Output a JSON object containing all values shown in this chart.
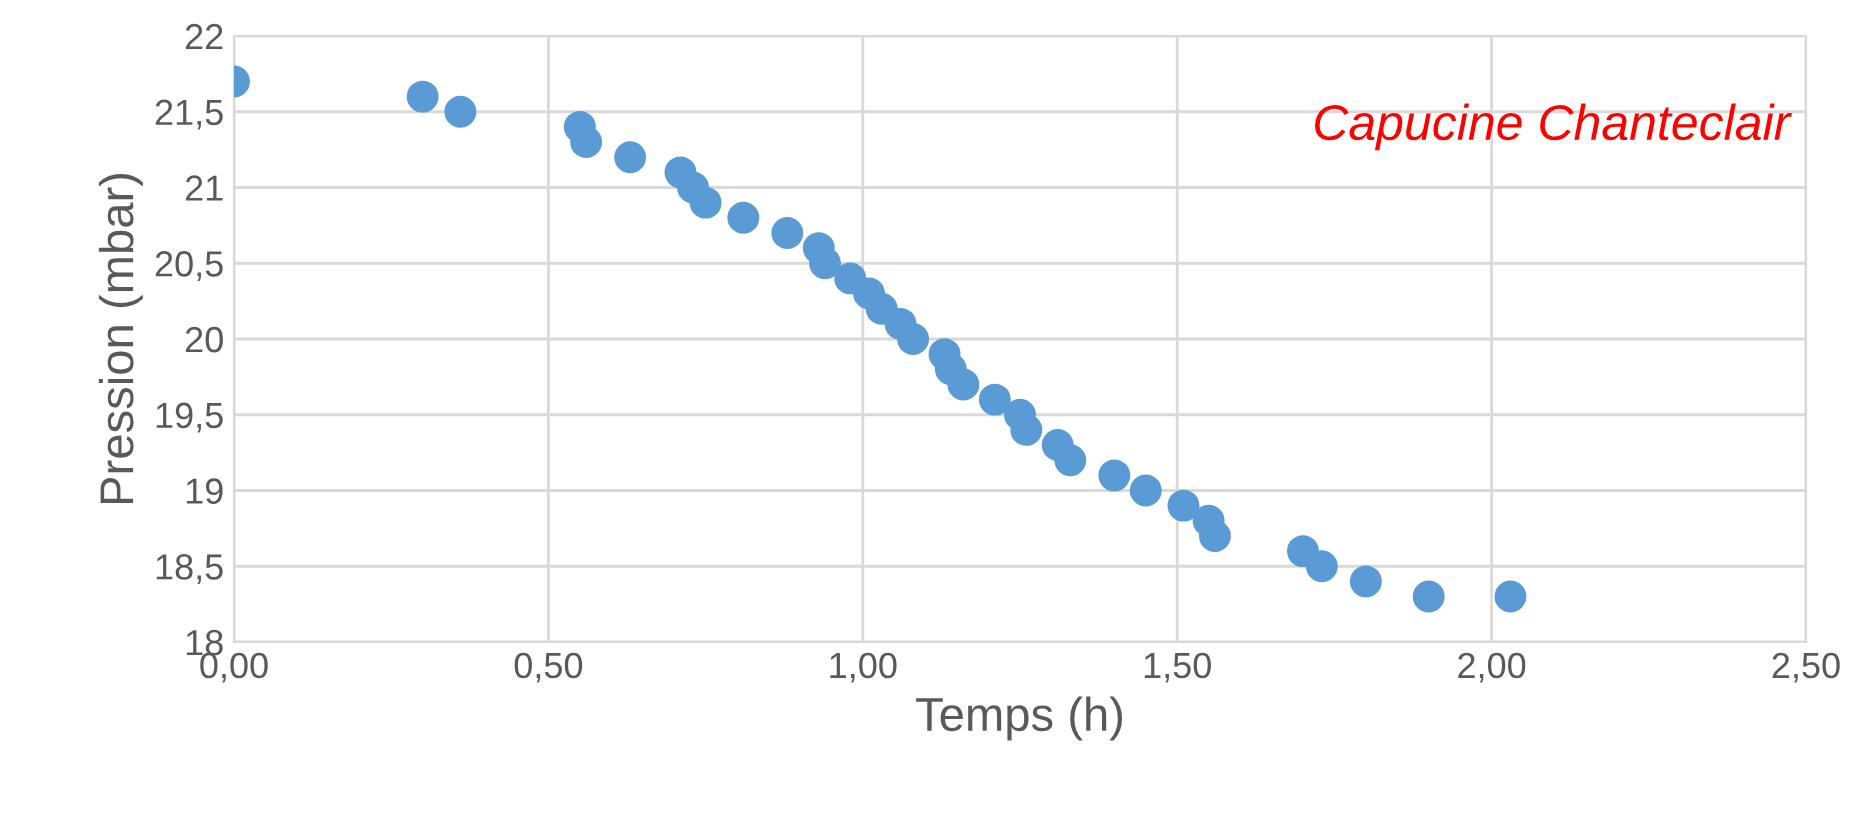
{
  "chart_data": {
    "type": "scatter",
    "xlabel": "Temps (h)",
    "ylabel": "Pression (mbar)",
    "annotations": [
      "Capucine Chanteclair"
    ],
    "x": [
      0.0,
      0.3,
      0.36,
      0.55,
      0.56,
      0.63,
      0.71,
      0.73,
      0.75,
      0.81,
      0.88,
      0.93,
      0.94,
      0.98,
      1.01,
      1.03,
      1.06,
      1.08,
      1.13,
      1.14,
      1.16,
      1.21,
      1.25,
      1.26,
      1.31,
      1.33,
      1.4,
      1.45,
      1.51,
      1.55,
      1.56,
      1.7,
      1.73,
      1.8,
      1.9,
      2.03
    ],
    "series": [
      {
        "color": "#5b9bd5",
        "values": [
          21.7,
          21.6,
          21.5,
          21.4,
          21.3,
          21.2,
          21.1,
          21.0,
          20.9,
          20.8,
          20.7,
          20.6,
          20.5,
          20.4,
          20.3,
          20.2,
          20.1,
          20.0,
          19.9,
          19.8,
          19.7,
          19.6,
          19.5,
          19.4,
          19.3,
          19.2,
          19.1,
          19.0,
          18.9,
          18.8,
          18.7,
          18.6,
          18.5,
          18.4,
          18.3,
          18.3
        ]
      }
    ],
    "xlim": [
      0,
      2.5
    ],
    "ylim": [
      18,
      22
    ],
    "xticks": [
      {
        "value": 0,
        "label": "0,00"
      },
      {
        "value": 0.5,
        "label": "0,50"
      },
      {
        "value": 1,
        "label": "1,00"
      },
      {
        "value": 1.5,
        "label": "1,50"
      },
      {
        "value": 2,
        "label": "2,00"
      },
      {
        "value": 2.5,
        "label": "2,50"
      }
    ],
    "yticks": [
      18,
      {
        "value": 18.5,
        "label": "18,5"
      },
      19,
      {
        "value": 19.5,
        "label": "19,5"
      },
      20,
      {
        "value": 20.5,
        "label": "20,5"
      },
      21,
      {
        "value": 21.5,
        "label": "21,5"
      },
      22
    ],
    "grid": true,
    "marker": "circle",
    "legend": false
  }
}
